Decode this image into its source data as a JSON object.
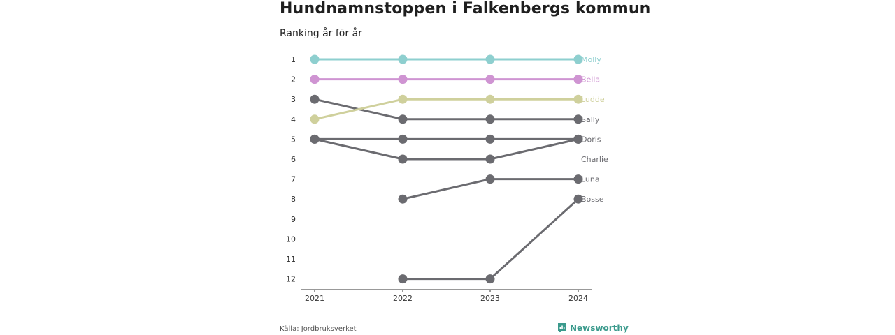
{
  "title": "Hundnamnstoppen i Falkenbergs kommun",
  "subtitle": "Ranking år för år",
  "source": "Källa: Jordbruksverket",
  "brand": {
    "name": "Newsworthy",
    "icon": "newsworthy-logo-icon",
    "color": "#3a9a8c"
  },
  "chart_data": {
    "type": "line",
    "title": "Hundnamnstoppen i Falkenbergs kommun",
    "subtitle": "Ranking år för år",
    "x": [
      "2021",
      "2022",
      "2023",
      "2024"
    ],
    "ylim": [
      1,
      12
    ],
    "y_ticks": [
      "1",
      "2",
      "3",
      "4",
      "5",
      "6",
      "7",
      "8",
      "9",
      "10",
      "11",
      "12"
    ],
    "y_inverted": true,
    "grid": false,
    "series": [
      {
        "name": "Molly",
        "values": [
          1,
          1,
          1,
          1
        ],
        "color": "#8ecfcf"
      },
      {
        "name": "Bella",
        "values": [
          2,
          2,
          2,
          2
        ],
        "color": "#cf94d2"
      },
      {
        "name": "Ludde",
        "values": [
          4,
          3,
          3,
          3
        ],
        "color": "#cfd09c"
      },
      {
        "name": "Sally",
        "values": [
          3,
          4,
          4,
          4
        ],
        "color": "#6b6b70"
      },
      {
        "name": "Doris",
        "values": [
          5,
          5,
          5,
          5
        ],
        "color": "#6b6b70"
      },
      {
        "name": "Charlie",
        "values": [
          5,
          6,
          6,
          5
        ],
        "color": "#6b6b70"
      },
      {
        "name": "Luna",
        "values": [
          null,
          8,
          7,
          7
        ],
        "color": "#6b6b70"
      },
      {
        "name": "Bosse",
        "values": [
          null,
          12,
          12,
          8
        ],
        "color": "#6b6b70"
      }
    ],
    "end_labels": [
      {
        "name": "Molly",
        "rank": 1
      },
      {
        "name": "Bella",
        "rank": 2
      },
      {
        "name": "Ludde",
        "rank": 3
      },
      {
        "name": "Sally",
        "rank": 4
      },
      {
        "name": "Doris",
        "rank": 5
      },
      {
        "name": "Charlie",
        "rank": 6
      },
      {
        "name": "Luna",
        "rank": 7
      },
      {
        "name": "Bosse",
        "rank": 8
      }
    ]
  }
}
